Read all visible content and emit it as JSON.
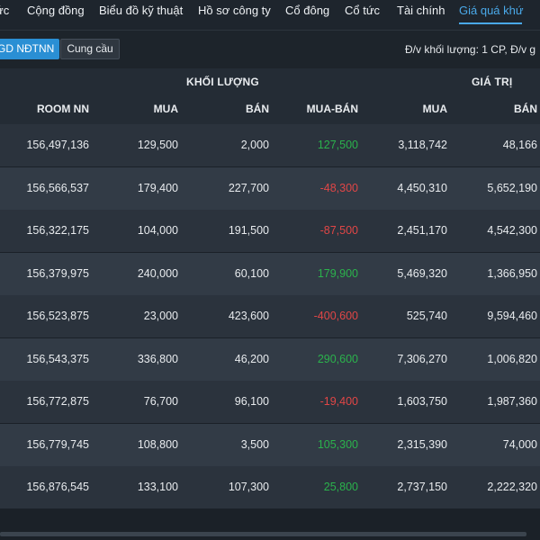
{
  "nav": {
    "items": [
      "ức",
      "Cộng đồng",
      "Biểu đồ kỹ thuật",
      "Hồ sơ công ty",
      "Cổ đông",
      "Cổ tức",
      "Tài chính",
      "Giá quá khứ"
    ],
    "active_index": 7
  },
  "toolbar": {
    "primary_tab": "GD NĐTNN",
    "secondary_tab": "Cung cầu",
    "unit_note": "Đ/v khối lượng: 1 CP, Đ/v g"
  },
  "table": {
    "group_headers": {
      "volume": "KHỐI LƯỢNG",
      "value": "GIÁ TRỊ"
    },
    "columns": [
      "ROOM NN",
      "MUA",
      "BÁN",
      "MUA-BÁN",
      "MUA",
      "BÁN"
    ],
    "rows": [
      {
        "room": "156,497,136",
        "buy_vol": "129,500",
        "sell_vol": "2,000",
        "net_vol": "127,500",
        "net_sign": "pos",
        "buy_val": "3,118,742",
        "sell_val": "48,166"
      },
      {
        "room": "156,566,537",
        "buy_vol": "179,400",
        "sell_vol": "227,700",
        "net_vol": "-48,300",
        "net_sign": "neg",
        "buy_val": "4,450,310",
        "sell_val": "5,652,190"
      },
      {
        "room": "156,322,175",
        "buy_vol": "104,000",
        "sell_vol": "191,500",
        "net_vol": "-87,500",
        "net_sign": "neg",
        "buy_val": "2,451,170",
        "sell_val": "4,542,300"
      },
      {
        "room": "156,379,975",
        "buy_vol": "240,000",
        "sell_vol": "60,100",
        "net_vol": "179,900",
        "net_sign": "pos",
        "buy_val": "5,469,320",
        "sell_val": "1,366,950"
      },
      {
        "room": "156,523,875",
        "buy_vol": "23,000",
        "sell_vol": "423,600",
        "net_vol": "-400,600",
        "net_sign": "neg",
        "buy_val": "525,740",
        "sell_val": "9,594,460"
      },
      {
        "room": "156,543,375",
        "buy_vol": "336,800",
        "sell_vol": "46,200",
        "net_vol": "290,600",
        "net_sign": "pos",
        "buy_val": "7,306,270",
        "sell_val": "1,006,820"
      },
      {
        "room": "156,772,875",
        "buy_vol": "76,700",
        "sell_vol": "96,100",
        "net_vol": "-19,400",
        "net_sign": "neg",
        "buy_val": "1,603,750",
        "sell_val": "1,987,360"
      },
      {
        "room": "156,779,745",
        "buy_vol": "108,800",
        "sell_vol": "3,500",
        "net_vol": "105,300",
        "net_sign": "pos",
        "buy_val": "2,315,390",
        "sell_val": "74,000"
      },
      {
        "room": "156,876,545",
        "buy_vol": "133,100",
        "sell_vol": "107,300",
        "net_vol": "25,800",
        "net_sign": "pos",
        "buy_val": "2,737,150",
        "sell_val": "2,222,320"
      }
    ]
  },
  "colors": {
    "accent": "#4aa9e9",
    "positive": "#2bb24c",
    "negative": "#e04646"
  }
}
